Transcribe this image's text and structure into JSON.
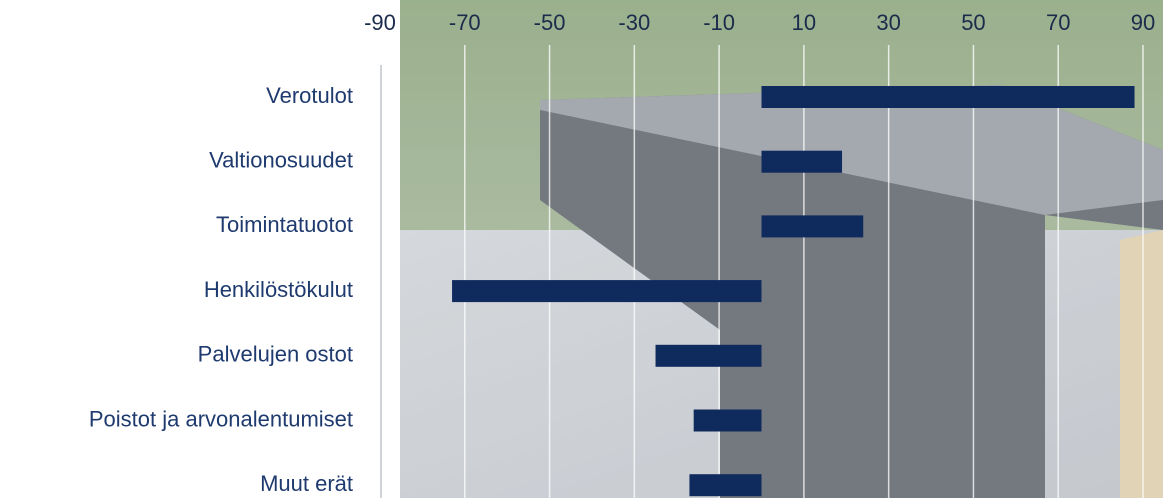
{
  "chart_data": {
    "type": "bar",
    "orientation": "horizontal",
    "categories": [
      "Verotulot",
      "Valtionosuudet",
      "Toimintatuotot",
      "Henkilöstökulut",
      "Palvelujen ostot",
      "Poistot ja arvonalentumiset",
      "Muut erät"
    ],
    "values": [
      88,
      19,
      24,
      -73,
      -25,
      -16,
      -17
    ],
    "color": "#0f2a5c",
    "xlim": [
      -90,
      90
    ],
    "xticks": [
      -90,
      -70,
      -50,
      -30,
      -10,
      10,
      30,
      50,
      70,
      90
    ],
    "grid": true
  }
}
